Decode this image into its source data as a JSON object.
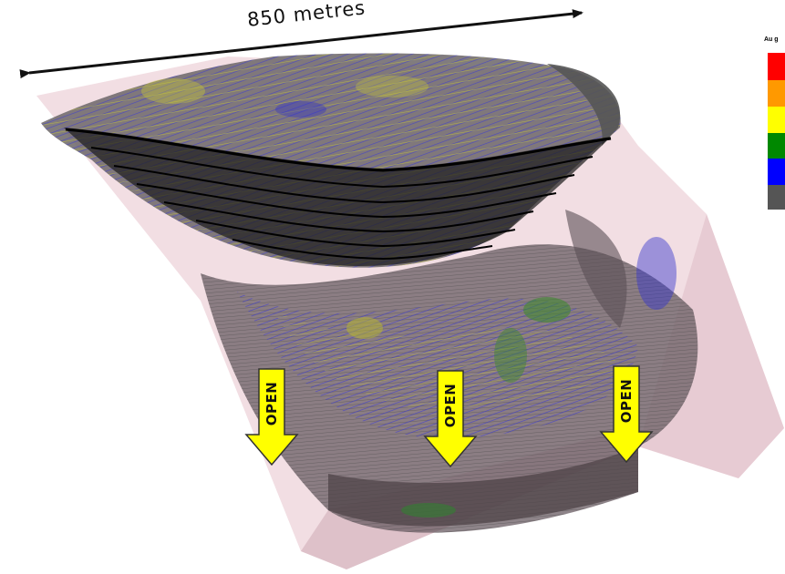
{
  "scale_bar": {
    "label": "850 metres"
  },
  "legend": {
    "title": "Au g",
    "swatches": [
      {
        "name": "legend-swatch-red",
        "color": "#ff0000"
      },
      {
        "name": "legend-swatch-orange",
        "color": "#ff9900"
      },
      {
        "name": "legend-swatch-yellow",
        "color": "#ffff00"
      },
      {
        "name": "legend-swatch-green",
        "color": "#008800"
      },
      {
        "name": "legend-swatch-blue",
        "color": "#0000ff"
      },
      {
        "name": "legend-swatch-grey",
        "color": "#555555"
      }
    ]
  },
  "arrows": [
    {
      "label": "OPEN",
      "color": "#ffff00"
    },
    {
      "label": "OPEN",
      "color": "#ffff00"
    },
    {
      "label": "OPEN",
      "color": "#ffff00"
    }
  ]
}
